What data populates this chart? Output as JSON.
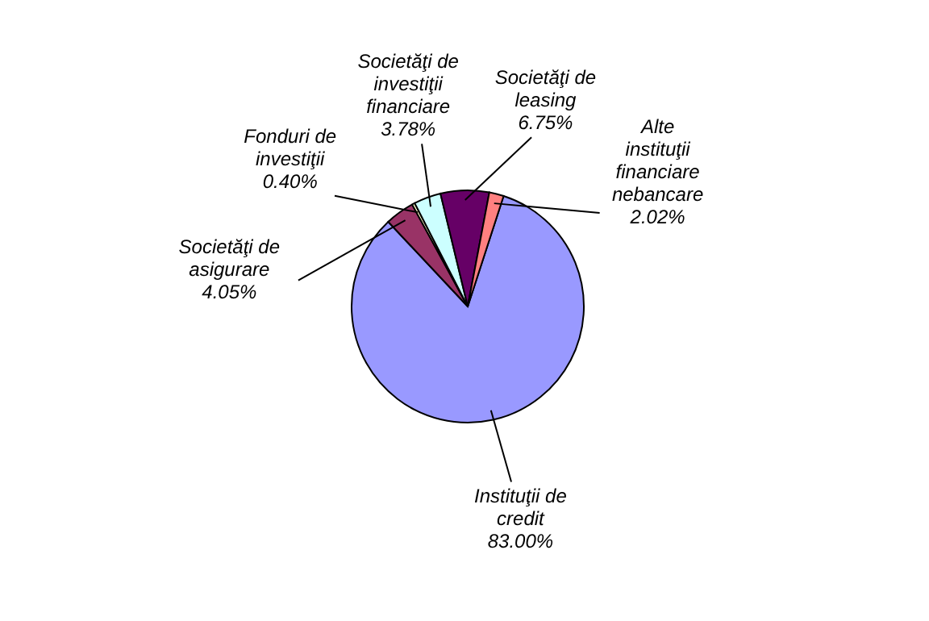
{
  "chart_data": {
    "type": "pie",
    "categories": [
      "Instituţii de credit",
      "Societăţi de asigurare",
      "Fonduri de investiţii",
      "Societăţi de investiţii financiare",
      "Societăţi de leasing",
      "Alte instituţii financiare nebancare"
    ],
    "values": [
      83.0,
      4.05,
      0.4,
      3.78,
      6.75,
      2.02
    ],
    "value_labels": [
      "83.00%",
      "4.05%",
      "0.40%",
      "3.78%",
      "6.75%",
      "2.02%"
    ],
    "colors": [
      "#9999ff",
      "#993366",
      "#ffffcc",
      "#ccffff",
      "#660066",
      "#ff8080"
    ]
  }
}
